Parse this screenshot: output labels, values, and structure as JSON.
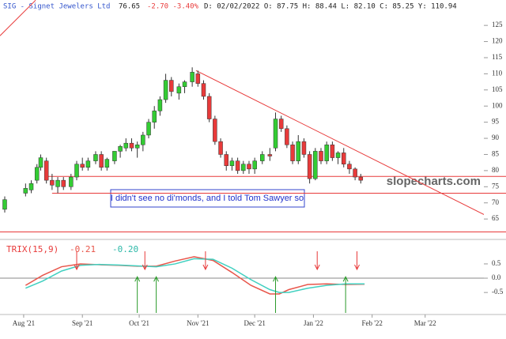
{
  "header": {
    "symbol": "SIG - Signet Jewelers Ltd",
    "last": "76.65",
    "change": "-2.70 -3.40%",
    "ohlc": "D: 02/02/2022 O: 87.75 H: 88.44 L: 82.10 C: 85.25 Y: 110.94"
  },
  "watermark": "slopecharts.com",
  "annotation": "I didn't see no di'monds, and I told Tom Sawyer so",
  "chart_data": {
    "type": "candlestick",
    "x": [
      -10,
      1,
      4,
      7,
      9,
      12,
      15,
      18,
      21,
      25,
      28,
      31,
      34,
      38,
      41,
      44,
      48,
      51,
      54,
      57,
      60,
      63,
      66,
      69,
      72,
      75,
      78,
      82,
      85,
      89,
      92,
      95,
      98,
      101,
      104,
      107,
      110,
      113,
      116,
      119,
      122,
      126,
      130,
      133,
      136,
      139,
      142,
      145,
      148,
      151,
      154,
      157,
      160,
      163,
      166,
      169,
      172,
      175,
      178
    ],
    "open": [
      68,
      73,
      74,
      77,
      81,
      83,
      77,
      75,
      77,
      75,
      78,
      82,
      81,
      83,
      85,
      81,
      83,
      86,
      87,
      88.5,
      87,
      88,
      91,
      95,
      98.5,
      102,
      108,
      104,
      106,
      107.5,
      110,
      107,
      103,
      96,
      89,
      85,
      81.5,
      83,
      80,
      82,
      80.5,
      83,
      85,
      87,
      96,
      93,
      88,
      83,
      89,
      85,
      77.5,
      86,
      83,
      88,
      84,
      85.5,
      82,
      80.5,
      78
    ],
    "high": [
      72,
      76,
      77,
      82,
      85,
      84,
      79,
      78,
      78,
      79,
      83,
      84,
      84,
      86,
      86,
      84,
      86,
      88,
      90,
      90,
      89,
      92,
      96,
      100,
      103,
      110,
      109,
      107,
      108,
      112,
      111,
      108,
      104,
      97,
      90,
      86,
      84,
      84,
      83,
      83,
      84,
      86,
      87,
      98,
      97,
      94,
      89,
      91,
      90,
      86,
      87,
      87,
      89,
      89,
      86,
      87,
      83,
      81,
      79
    ],
    "low": [
      67,
      72,
      73,
      76,
      80,
      76,
      74,
      73,
      74,
      74,
      77,
      80,
      80,
      82,
      80,
      80,
      82,
      84,
      86,
      86,
      84,
      86,
      90,
      93,
      97,
      101,
      103,
      102,
      104,
      106,
      106,
      102,
      95,
      88,
      84,
      80,
      80,
      79,
      79,
      79,
      79,
      82,
      83,
      86,
      92,
      87,
      82,
      82,
      84,
      76,
      77,
      82,
      82,
      83,
      82,
      81,
      79,
      77,
      76
    ],
    "close": [
      71,
      74.5,
      76,
      81,
      84,
      77,
      75.5,
      77,
      75,
      78,
      82,
      81,
      83,
      85,
      81,
      83.5,
      86,
      87.5,
      88.5,
      87,
      88,
      91,
      95,
      98.5,
      102,
      108,
      104.5,
      106,
      107.5,
      110.5,
      107,
      103,
      96,
      89,
      85,
      81.5,
      83,
      80,
      82,
      80.5,
      83,
      85,
      84.5,
      96,
      93,
      88,
      83,
      89,
      85,
      77.5,
      86,
      83,
      88,
      84,
      85.5,
      82,
      80.5,
      78,
      77
    ],
    "up_color": "#33cc33",
    "down_color": "#e83a3a",
    "xlim": [
      -12.5,
      243
    ],
    "ylim": [
      59.4,
      129.2
    ],
    "xticks": [
      {
        "value": 0,
        "label": "Aug '21"
      },
      {
        "value": 31,
        "label": "Sep '21"
      },
      {
        "value": 61,
        "label": "Oct '21"
      },
      {
        "value": 92,
        "label": "Nov '21"
      },
      {
        "value": 122,
        "label": "Dec '21"
      },
      {
        "value": 153,
        "label": "Jan '22"
      },
      {
        "value": 184,
        "label": "Feb '22"
      },
      {
        "value": 212,
        "label": "Mar '22"
      }
    ],
    "yticks": [
      65,
      70,
      75,
      80,
      85,
      90,
      95,
      100,
      105,
      110,
      115,
      120,
      125
    ],
    "hlines": [
      {
        "y": 78.2,
        "from": 12
      },
      {
        "y": 73,
        "from": 15
      },
      {
        "y": 61,
        "from": -12.5
      }
    ],
    "trendlines": [
      {
        "x": [
          91,
          254.6
        ],
        "y": [
          111,
          63
        ]
      },
      {
        "x": [
          -12.5,
          6.3
        ],
        "y": [
          121.8,
          132.8
        ]
      }
    ],
    "line_color": "#e83a3a",
    "trix_label": "TRIX(15,9)",
    "trix_x": [
      1,
      10,
      20,
      30,
      40,
      50,
      60,
      70,
      80,
      90,
      100,
      110,
      120,
      130,
      135,
      140,
      150,
      160,
      170,
      180
    ],
    "trix_series": [
      {
        "name": "-0.21",
        "color": "#e8554a",
        "values": [
          -0.25,
          0.1,
          0.4,
          0.5,
          0.47,
          0.45,
          0.42,
          0.42,
          0.6,
          0.75,
          0.62,
          0.2,
          -0.25,
          -0.55,
          -0.55,
          -0.4,
          -0.22,
          -0.2,
          -0.22,
          -0.21
        ]
      },
      {
        "name": "-0.20",
        "color": "#40d0c0",
        "values": [
          -0.35,
          -0.1,
          0.25,
          0.45,
          0.48,
          0.46,
          0.43,
          0.4,
          0.5,
          0.68,
          0.66,
          0.35,
          -0.05,
          -0.4,
          -0.5,
          -0.5,
          -0.35,
          -0.25,
          -0.2,
          -0.2
        ]
      }
    ],
    "trix_ylim": [
      -1.27,
      1.3
    ],
    "trix_yticks": [
      {
        "value": 0.5,
        "label": "0.5"
      },
      {
        "value": 0,
        "label": "0.0"
      },
      {
        "value": -0.5,
        "label": "-0.5"
      }
    ],
    "sell_signals": [
      28,
      64,
      96,
      155,
      176
    ],
    "buy_signals": [
      60,
      70,
      133,
      170
    ]
  }
}
